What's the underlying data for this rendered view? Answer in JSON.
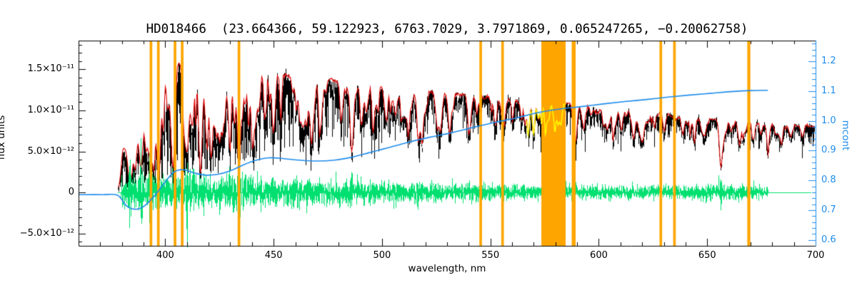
{
  "chart_data": {
    "type": "line",
    "title": "HD018466  (23.664366, 59.122923, 6763.7029, 3.7971869, 0.065247265, −0.20062758)",
    "star_id": "HD018466",
    "title_params": [
      23.664366,
      59.122923,
      6763.7029,
      3.7971869,
      0.065247265,
      -0.20062758
    ],
    "xlabel": "wavelength, nm",
    "ylabel_left": "flux units",
    "ylabel_right": "mcont",
    "xlim": [
      360,
      700
    ],
    "ylim_left": [
      -6.5e-12,
      1.85e-11
    ],
    "ylim_right": [
      0.58,
      1.27
    ],
    "x_minor_step": 10,
    "y_left_minor_step": 1e-12,
    "y_right_minor_step": 0.02,
    "grid": false,
    "legend": "none",
    "x_ticks": [
      {
        "v": 400,
        "label": "400"
      },
      {
        "v": 450,
        "label": "450"
      },
      {
        "v": 500,
        "label": "500"
      },
      {
        "v": 550,
        "label": "550"
      },
      {
        "v": 600,
        "label": "600"
      },
      {
        "v": 650,
        "label": "650"
      },
      {
        "v": 700,
        "label": "700"
      }
    ],
    "y_ticks_left": [
      {
        "v": 1.5e-11,
        "label": "1.5×10⁻¹¹"
      },
      {
        "v": 1e-11,
        "label": "1.0×10⁻¹¹"
      },
      {
        "v": 5e-12,
        "label": "5.0×10⁻¹²"
      },
      {
        "v": 0,
        "label": "0"
      },
      {
        "v": -5e-12,
        "label": "−5.0×10⁻¹²"
      }
    ],
    "y_ticks_right": [
      {
        "v": 1.2,
        "label": "1.2"
      },
      {
        "v": 1.1,
        "label": "1.1"
      },
      {
        "v": 1.0,
        "label": "1.0"
      },
      {
        "v": 0.9,
        "label": "0.9"
      },
      {
        "v": 0.8,
        "label": "0.8"
      },
      {
        "v": 0.7,
        "label": "0.7"
      },
      {
        "v": 0.6,
        "label": "0.6"
      }
    ],
    "colors": {
      "observed": "#000000",
      "model": "#dd0000",
      "residual": "#00e070",
      "continuum": "#1f8ceb",
      "masked": "#ffa500",
      "highlight": "#ffff00",
      "axis": "#000000",
      "background": "#ffffff"
    },
    "masked_bands_nm": [
      [
        392.8,
        394.0
      ],
      [
        396.2,
        397.4
      ],
      [
        403.9,
        405.1
      ],
      [
        407.2,
        408.4
      ],
      [
        433.4,
        434.6
      ],
      [
        544.9,
        546.1
      ],
      [
        555.0,
        556.2
      ],
      [
        573.5,
        584.7
      ],
      [
        587.5,
        589.3
      ],
      [
        628.0,
        629.2
      ],
      [
        634.3,
        635.5
      ],
      [
        668.5,
        669.9
      ]
    ],
    "yellow_segment_nm": [
      566.5,
      584.7
    ],
    "series": {
      "observed": {
        "name": "observed spectrum",
        "range_nm": [
          378,
          699.5
        ],
        "envelope": [
          [
            378,
            5.2e-12
          ],
          [
            381,
            6.4e-12
          ],
          [
            384,
            7.6e-12
          ],
          [
            387,
            9e-12
          ],
          [
            390,
            1.05e-11
          ],
          [
            393,
            1.12e-11
          ],
          [
            396,
            1.2e-11
          ],
          [
            399,
            1.42e-11
          ],
          [
            402,
            1.52e-11
          ],
          [
            406,
            1.58e-11
          ],
          [
            410,
            1.5e-11
          ],
          [
            414,
            1.46e-11
          ],
          [
            420,
            1.44e-11
          ],
          [
            428,
            1.42e-11
          ],
          [
            436,
            1.45e-11
          ],
          [
            444,
            1.47e-11
          ],
          [
            452,
            1.45e-11
          ],
          [
            462,
            1.42e-11
          ],
          [
            472,
            1.4e-11
          ],
          [
            482,
            1.37e-11
          ],
          [
            492,
            1.34e-11
          ],
          [
            502,
            1.31e-11
          ],
          [
            515,
            1.27e-11
          ],
          [
            530,
            1.22e-11
          ],
          [
            545,
            1.18e-11
          ],
          [
            560,
            1.14e-11
          ],
          [
            575,
            1.11e-11
          ],
          [
            590,
            1.08e-11
          ],
          [
            605,
            1.03e-11
          ],
          [
            620,
            9.9e-12
          ],
          [
            635,
            9.5e-12
          ],
          [
            650,
            9.1e-12
          ],
          [
            665,
            8.8e-12
          ],
          [
            680,
            8.5e-12
          ],
          [
            699,
            8.1e-12
          ]
        ],
        "noise_down": [
          [
            378,
            0.4
          ],
          [
            385,
            0.38
          ],
          [
            392,
            0.34
          ],
          [
            400,
            0.3
          ],
          [
            410,
            0.26
          ],
          [
            425,
            0.22
          ],
          [
            440,
            0.2
          ],
          [
            460,
            0.17
          ],
          [
            480,
            0.15
          ],
          [
            500,
            0.13
          ],
          [
            525,
            0.11
          ],
          [
            550,
            0.1
          ],
          [
            575,
            0.095
          ],
          [
            600,
            0.09
          ],
          [
            625,
            0.085
          ],
          [
            650,
            0.08
          ],
          [
            699,
            0.078
          ]
        ],
        "noise_clamp": [
          [
            378,
            0.85
          ],
          [
            400,
            0.8
          ],
          [
            430,
            0.65
          ],
          [
            470,
            0.6
          ],
          [
            520,
            0.5
          ],
          [
            600,
            0.45
          ],
          [
            699,
            0.4
          ]
        ]
      },
      "absorption_lines": [
        [
          383.5,
          0.5,
          0.7
        ],
        [
          386.0,
          0.35,
          0.5
        ],
        [
          388.9,
          0.55,
          0.7
        ],
        [
          393.4,
          0.7,
          0.9
        ],
        [
          396.8,
          0.65,
          0.9
        ],
        [
          404.6,
          0.3,
          0.4
        ],
        [
          410.2,
          0.6,
          0.8
        ],
        [
          417.2,
          0.25,
          0.4
        ],
        [
          422.7,
          0.35,
          0.5
        ],
        [
          434.0,
          0.62,
          0.8
        ],
        [
          438.4,
          0.3,
          0.5
        ],
        [
          440.5,
          0.25,
          0.4
        ],
        [
          448.1,
          0.22,
          0.4
        ],
        [
          453.1,
          0.2,
          0.4
        ],
        [
          486.1,
          0.62,
          0.8
        ],
        [
          495.7,
          0.15,
          0.4
        ],
        [
          516.7,
          0.28,
          0.6
        ],
        [
          518.4,
          0.25,
          0.5
        ],
        [
          527.0,
          0.22,
          0.5
        ],
        [
          532.8,
          0.15,
          0.4
        ],
        [
          552.8,
          0.12,
          0.4
        ],
        [
          589.3,
          0.4,
          0.7
        ],
        [
          610.3,
          0.12,
          0.4
        ],
        [
          616.2,
          0.15,
          0.5
        ],
        [
          630.2,
          0.12,
          0.4
        ],
        [
          656.3,
          0.6,
          0.7
        ],
        [
          670.8,
          0.15,
          0.4
        ]
      ],
      "weak_lines": {
        "count": 260
      },
      "model": {
        "name": "fitted model spectrum",
        "scale": 0.99
      },
      "residual": {
        "name": "observed minus model residual",
        "range_nm": [
          379.5,
          678
        ],
        "zero_line_nm": [
          378,
          698
        ],
        "sigma": [
          [
            378,
            9e-13
          ],
          [
            390,
            1.05e-12
          ],
          [
            405,
            1e-12
          ],
          [
            420,
            1.05e-12
          ],
          [
            435,
            1e-12
          ],
          [
            450,
            9.5e-13
          ],
          [
            465,
            8e-13
          ],
          [
            480,
            7.2e-13
          ],
          [
            495,
            6.8e-13
          ],
          [
            515,
            6.2e-13
          ],
          [
            535,
            5.5e-13
          ],
          [
            555,
            5e-13
          ],
          [
            575,
            4.7e-13
          ],
          [
            595,
            4.5e-13
          ],
          [
            615,
            4.2e-13
          ],
          [
            635,
            4e-13
          ],
          [
            655,
            4.8e-13
          ],
          [
            677,
            4e-13
          ]
        ],
        "spikes": [
          [
            383.5,
            0.8,
            0.6
          ],
          [
            388.9,
            0.8,
            0.6
          ],
          [
            393.4,
            1.0,
            0.7
          ],
          [
            396.8,
            1.0,
            0.7
          ],
          [
            410.2,
            0.8,
            0.6
          ],
          [
            434.0,
            0.9,
            0.6
          ],
          [
            486.1,
            1.0,
            0.5
          ],
          [
            516.9,
            0.6,
            0.5
          ],
          [
            589.3,
            0.8,
            0.5
          ],
          [
            656.3,
            1.8,
            0.5
          ]
        ]
      },
      "continuum_mcont": {
        "name": "mcont continuum (right axis)",
        "points": [
          [
            360,
            0.752
          ],
          [
            371,
            0.752
          ],
          [
            378,
            0.75
          ],
          [
            382,
            0.715
          ],
          [
            386,
            0.703
          ],
          [
            390,
            0.712
          ],
          [
            395,
            0.748
          ],
          [
            400,
            0.795
          ],
          [
            404,
            0.828
          ],
          [
            408,
            0.836
          ],
          [
            413,
            0.826
          ],
          [
            418,
            0.818
          ],
          [
            424,
            0.82
          ],
          [
            430,
            0.832
          ],
          [
            436,
            0.852
          ],
          [
            442,
            0.868
          ],
          [
            448,
            0.876
          ],
          [
            455,
            0.873
          ],
          [
            462,
            0.868
          ],
          [
            470,
            0.865
          ],
          [
            478,
            0.868
          ],
          [
            486,
            0.878
          ],
          [
            494,
            0.893
          ],
          [
            502,
            0.908
          ],
          [
            512,
            0.928
          ],
          [
            522,
            0.945
          ],
          [
            532,
            0.96
          ],
          [
            542,
            0.978
          ],
          [
            552,
            0.995
          ],
          [
            562,
            1.01
          ],
          [
            572,
            1.028
          ],
          [
            582,
            1.04
          ],
          [
            592,
            1.048
          ],
          [
            602,
            1.057
          ],
          [
            612,
            1.065
          ],
          [
            622,
            1.072
          ],
          [
            632,
            1.08
          ],
          [
            642,
            1.087
          ],
          [
            652,
            1.093
          ],
          [
            662,
            1.099
          ],
          [
            670,
            1.102
          ],
          [
            678,
            1.103
          ]
        ]
      }
    }
  }
}
